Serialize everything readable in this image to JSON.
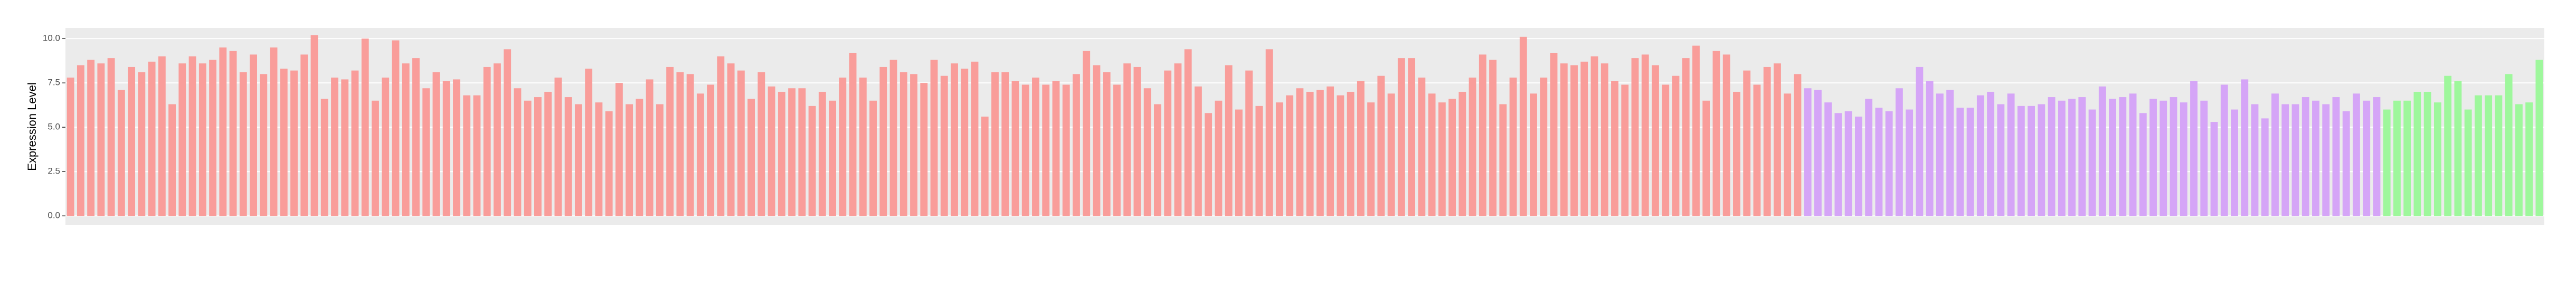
{
  "chart_data": {
    "type": "bar",
    "y_label": "Expression Level",
    "ylim": [
      -0.5,
      10.6
    ],
    "yticks": [
      {
        "value": 0,
        "label": "0.0"
      },
      2.5,
      {
        "value": 5,
        "label": "5.0"
      },
      7.5,
      {
        "value": 10,
        "label": "10.0"
      }
    ],
    "grid": true,
    "series": [
      {
        "color": "#f99d9a",
        "values": [
          7.8,
          8.5,
          8.8,
          8.6,
          8.9,
          7.1,
          8.4,
          8.1,
          8.7,
          9.0,
          6.3,
          8.6,
          9.0,
          8.6,
          8.8,
          9.5,
          9.3,
          8.1,
          9.1,
          8.0,
          9.5,
          8.3,
          8.2,
          9.1,
          10.2,
          6.6,
          7.8,
          7.7,
          8.2,
          10.0,
          6.5,
          7.8,
          9.9,
          8.6,
          8.9,
          7.2,
          8.1,
          7.6,
          7.7,
          6.8,
          6.8,
          8.4,
          8.6,
          9.4,
          7.2,
          6.5,
          6.7,
          7.0,
          7.8,
          6.7,
          6.3,
          8.3,
          6.4,
          5.9,
          7.5,
          6.3,
          6.6,
          7.7,
          6.3,
          8.4,
          8.1,
          8.0,
          6.9,
          7.4,
          9.0,
          8.6,
          8.2,
          6.6,
          8.1,
          7.3,
          7.0,
          7.2,
          7.2,
          6.2,
          7.0,
          6.5,
          7.8,
          9.2,
          7.8,
          6.5,
          8.4,
          8.8,
          8.1,
          8.0,
          7.5,
          8.8,
          7.9,
          8.6,
          8.3,
          8.7,
          5.6,
          8.1,
          8.1,
          7.6,
          7.4,
          7.8,
          7.4,
          7.6,
          7.4,
          8.0,
          9.3,
          8.5,
          8.1,
          7.4,
          8.6,
          8.4,
          7.2,
          6.3,
          8.2,
          8.6,
          9.4,
          7.3,
          5.8,
          6.5,
          8.5,
          6.0,
          8.2,
          6.2,
          9.4,
          6.4,
          6.8,
          7.2,
          7.0,
          7.1,
          7.3,
          6.8,
          7.0,
          7.6,
          6.4,
          7.9,
          6.9,
          8.9,
          8.9,
          7.8,
          6.9,
          6.4,
          6.6,
          7.0,
          7.8,
          9.1,
          8.8,
          6.3,
          7.8,
          10.1,
          6.9,
          7.8,
          9.2,
          8.6,
          8.5,
          8.7,
          9.0,
          8.6,
          7.6,
          7.4,
          8.9,
          9.1,
          8.5,
          7.4,
          7.9,
          8.9,
          9.6,
          6.5,
          9.3,
          9.1,
          7.0,
          8.2,
          7.4,
          8.4,
          8.6,
          6.9,
          8.0
        ]
      },
      {
        "color": "#d5a5f7",
        "values": [
          7.2,
          7.1,
          6.4,
          5.8,
          5.9,
          5.6,
          6.6,
          6.1,
          5.9,
          7.2,
          6.0,
          8.4,
          7.6,
          6.9,
          7.1,
          6.1,
          6.1,
          6.8,
          7.0,
          6.3,
          6.9,
          6.2,
          6.2,
          6.3,
          6.7,
          6.5,
          6.6,
          6.7,
          6.0,
          7.3,
          6.6,
          6.7,
          6.9,
          5.8,
          6.6,
          6.5,
          6.7,
          6.4,
          7.6,
          6.5,
          5.3,
          7.4,
          6.0,
          7.7,
          6.3,
          5.5,
          6.9,
          6.3,
          6.3,
          6.7,
          6.5,
          6.3,
          6.7,
          5.9,
          6.9,
          6.5,
          6.7
        ]
      },
      {
        "color": "#9ef79c",
        "values": [
          6.0,
          6.5,
          6.5,
          7.0,
          7.0,
          6.4,
          7.9,
          7.6,
          6.0,
          6.8,
          6.8,
          6.8,
          8.0,
          6.3,
          6.4,
          8.8
        ]
      }
    ]
  }
}
